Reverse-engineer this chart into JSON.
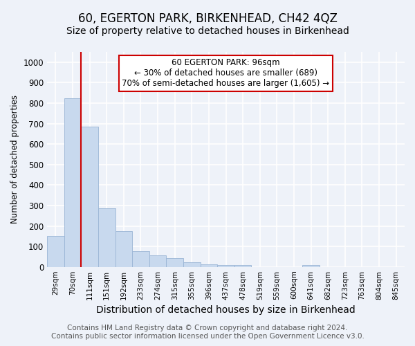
{
  "title": "60, EGERTON PARK, BIRKENHEAD, CH42 4QZ",
  "subtitle": "Size of property relative to detached houses in Birkenhead",
  "xlabel": "Distribution of detached houses by size in Birkenhead",
  "ylabel": "Number of detached properties",
  "categories": [
    "29sqm",
    "70sqm",
    "111sqm",
    "151sqm",
    "192sqm",
    "233sqm",
    "274sqm",
    "315sqm",
    "355sqm",
    "396sqm",
    "437sqm",
    "478sqm",
    "519sqm",
    "559sqm",
    "600sqm",
    "641sqm",
    "682sqm",
    "723sqm",
    "763sqm",
    "804sqm",
    "845sqm"
  ],
  "values": [
    150,
    825,
    685,
    285,
    175,
    78,
    55,
    43,
    22,
    13,
    10,
    8,
    0,
    0,
    0,
    9,
    0,
    0,
    0,
    0,
    0
  ],
  "bar_color": "#c8d9ee",
  "bar_edgecolor": "#9ab5d5",
  "ylim": [
    0,
    1050
  ],
  "yticks": [
    0,
    100,
    200,
    300,
    400,
    500,
    600,
    700,
    800,
    900,
    1000
  ],
  "vline_x": 1.5,
  "vline_color": "#cc0000",
  "annotation_text": "60 EGERTON PARK: 96sqm\n← 30% of detached houses are smaller (689)\n70% of semi-detached houses are larger (1,605) →",
  "annotation_box_color": "#ffffff",
  "annotation_box_edgecolor": "#cc0000",
  "footer_line1": "Contains HM Land Registry data © Crown copyright and database right 2024.",
  "footer_line2": "Contains public sector information licensed under the Open Government Licence v3.0.",
  "bg_color": "#eef2f9",
  "grid_color": "#ffffff",
  "title_fontsize": 12,
  "subtitle_fontsize": 10,
  "footer_fontsize": 7.5,
  "ylabel_fontsize": 8.5,
  "xlabel_fontsize": 10
}
